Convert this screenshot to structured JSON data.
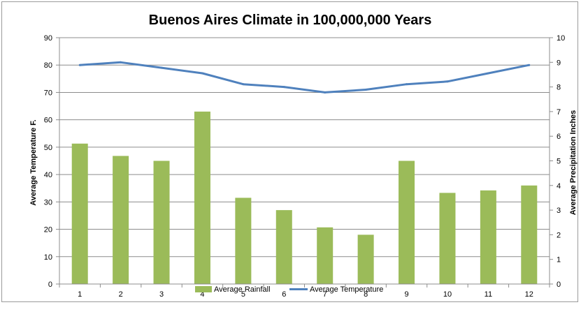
{
  "chart_data": {
    "type": "bar",
    "title": "Buenos Aires Climate in 100,000,000  Years",
    "categories": [
      "1",
      "2",
      "3",
      "4",
      "5",
      "6",
      "7",
      "8",
      "9",
      "10",
      "11",
      "12"
    ],
    "series": [
      {
        "name": "Average Rainfall",
        "type": "bar",
        "axis": "right",
        "color": "#9bbb59",
        "values": [
          5.7,
          5.2,
          5.0,
          7.0,
          3.5,
          3.0,
          2.3,
          2.0,
          5.0,
          3.7,
          3.8,
          4.0
        ]
      },
      {
        "name": "Average Temperature",
        "type": "line",
        "axis": "left",
        "color": "#4f81bd",
        "values": [
          80,
          81,
          79,
          77,
          73,
          72,
          70,
          71,
          73,
          74,
          77,
          80
        ]
      }
    ],
    "y_left": {
      "label": "Average Temperature F.",
      "min": 0,
      "max": 90,
      "step": 10
    },
    "y_right": {
      "label": "Average Precipitation  Inches",
      "min": 0,
      "max": 10,
      "step": 1
    },
    "grid": true,
    "legend": "bottom"
  }
}
